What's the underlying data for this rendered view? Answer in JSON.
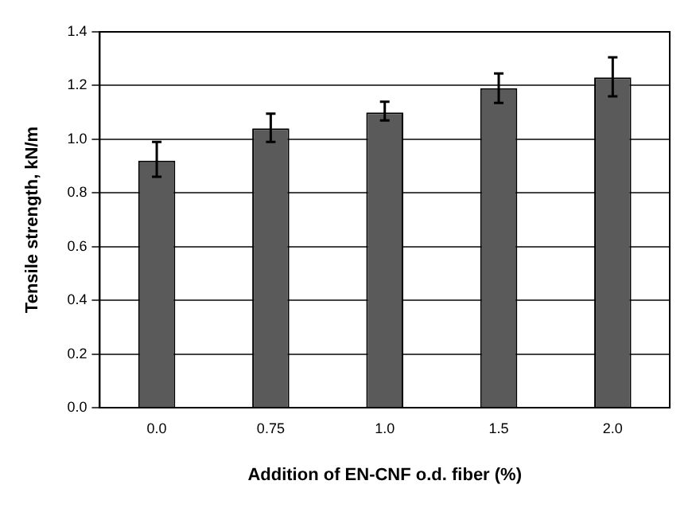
{
  "chart_data": {
    "type": "bar",
    "xlabel": "Addition of EN-CNF o.d. fiber (%)",
    "ylabel": "Tensile strength, kN/m",
    "categories": [
      "0.0",
      "0.75",
      "1.0",
      "1.5",
      "2.0"
    ],
    "values": [
      0.92,
      1.04,
      1.1,
      1.19,
      1.23
    ],
    "errors": [
      [
        0.86,
        0.99
      ],
      [
        0.99,
        1.095
      ],
      [
        1.07,
        1.14
      ],
      [
        1.135,
        1.245
      ],
      [
        1.16,
        1.305
      ]
    ],
    "color": "#5a5a5a",
    "ylim": [
      0,
      1.4
    ],
    "yticks": [
      {
        "value": 0,
        "label": "0.0"
      },
      {
        "value": 0.2,
        "label": "0.2"
      },
      {
        "value": 0.4,
        "label": "0.4"
      },
      {
        "value": 0.6,
        "label": "0.6"
      },
      {
        "value": 0.8,
        "label": "0.8"
      },
      {
        "value": 1.0,
        "label": "1.0"
      },
      {
        "value": 1.2,
        "label": "1.2"
      },
      {
        "value": 1.4,
        "label": "1.4"
      }
    ],
    "grid": "y"
  }
}
